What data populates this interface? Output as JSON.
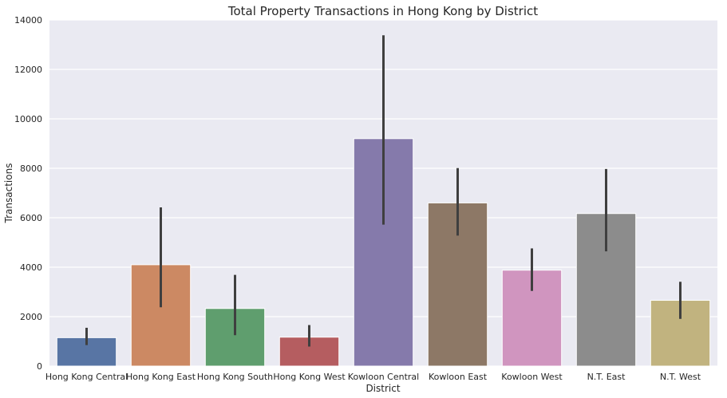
{
  "chart_data": {
    "type": "bar",
    "title": "Total Property Transactions in Hong Kong by District",
    "xlabel": "District",
    "ylabel": "Transactions",
    "ylim": [
      0,
      14000
    ],
    "yticks": [
      0,
      2000,
      4000,
      6000,
      8000,
      10000,
      12000,
      14000
    ],
    "grid": true,
    "categories": [
      "Hong Kong Central",
      "Hong Kong East",
      "Hong Kong South",
      "Hong Kong West",
      "Kowloon Central",
      "Kowloon East",
      "Kowloon West",
      "N.T. East",
      "N.T. West"
    ],
    "values": [
      1150,
      4100,
      2330,
      1170,
      9200,
      6600,
      3880,
      6170,
      2660
    ],
    "error_bars": [
      {
        "low": 850,
        "high": 1550
      },
      {
        "low": 2380,
        "high": 6420
      },
      {
        "low": 1250,
        "high": 3690
      },
      {
        "low": 790,
        "high": 1660
      },
      {
        "low": 5720,
        "high": 13380
      },
      {
        "low": 5280,
        "high": 8010
      },
      {
        "low": 3040,
        "high": 4760
      },
      {
        "low": 4640,
        "high": 7970
      },
      {
        "low": 1910,
        "high": 3410
      }
    ],
    "colors": [
      "#5875a4",
      "#cc8963",
      "#5f9e6e",
      "#b55d60",
      "#857aab",
      "#8d7866",
      "#d095bf",
      "#8c8c8c",
      "#c1b37f"
    ],
    "background": "#eaeaf2",
    "errorbar_color": "#3f3f3f"
  }
}
